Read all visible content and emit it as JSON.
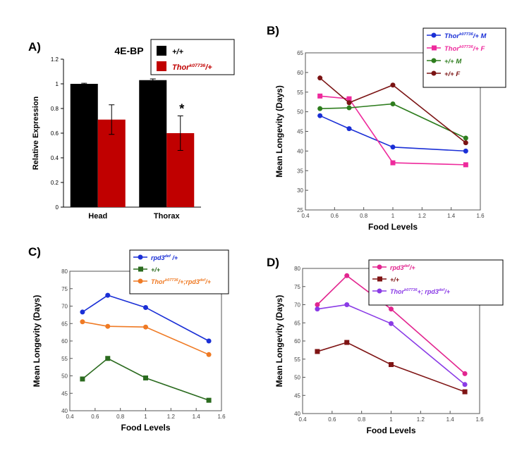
{
  "colors": {
    "black": "#000000",
    "red": "#c00000",
    "blue": "#1a2fd6",
    "pink": "#ee2a9c",
    "green": "#2e7d1e",
    "maroon": "#7b1414",
    "orange": "#ef7a24",
    "darkgreen": "#2b6b1f",
    "magenta": "#e2258f",
    "purple": "#8a3be6",
    "darkred": "#7f1414"
  },
  "chart_data": [
    {
      "id": "A",
      "panel_label": "A)",
      "type": "bar",
      "title": "4E-BP",
      "ylabel": "Relative Expression",
      "xlabel": "",
      "ylim": [
        0,
        1.2
      ],
      "yticks": [
        "0",
        "0.2",
        "0.4",
        "0.6",
        "0.8",
        "1",
        "1.2"
      ],
      "categories": [
        "Head",
        "Thorax"
      ],
      "series": [
        {
          "name": "+/+",
          "sup": "",
          "suffix": "",
          "values": [
            1.0,
            1.03
          ],
          "errors": [
            0.005,
            0.01
          ],
          "color": "#000000"
        },
        {
          "name": "Thor",
          "sup": "k07736",
          "suffix": "/+",
          "values": [
            0.71,
            0.6
          ],
          "errors": [
            0.12,
            0.14
          ],
          "color": "#c00000"
        }
      ],
      "annotations": [
        {
          "text": "*",
          "category": "Thorax",
          "series": 1
        }
      ],
      "legend": "top-right"
    },
    {
      "id": "B",
      "panel_label": "B)",
      "type": "line",
      "title": "",
      "xlabel": "Food Levels",
      "ylabel": "Mean Longevity (Days)",
      "xlim": [
        0.4,
        1.6
      ],
      "ylim": [
        25,
        65
      ],
      "xticks": [
        "0.4",
        "0.6",
        "0.8",
        "1",
        "1.2",
        "1.4",
        "1.6"
      ],
      "yticks": [
        "25",
        "30",
        "35",
        "40",
        "45",
        "50",
        "55",
        "60",
        "65"
      ],
      "x": [
        0.5,
        0.7,
        1,
        1.5
      ],
      "series": [
        {
          "name": "Thor",
          "sup": "k07736",
          "suffix": "/+ M",
          "values": [
            49,
            45.7,
            41,
            40
          ],
          "color": "#1a2fd6",
          "marker": "circle"
        },
        {
          "name": "Thor",
          "sup": "k07736",
          "suffix": "/+ F",
          "values": [
            54,
            53.3,
            37,
            36.5
          ],
          "color": "#ee2a9c",
          "marker": "square"
        },
        {
          "name": "+/+ ",
          "sup": "",
          "suffix": "M",
          "values": [
            50.8,
            51,
            52,
            43.3
          ],
          "color": "#2e7d1e",
          "marker": "circle"
        },
        {
          "name": "+/+ ",
          "sup": "",
          "suffix": "F",
          "values": [
            58.6,
            52.3,
            56.8,
            42.1
          ],
          "color": "#7b1414",
          "marker": "circle"
        }
      ],
      "legend": "top-right"
    },
    {
      "id": "C",
      "panel_label": "C)",
      "type": "line",
      "title": "",
      "xlabel": "Food Levels",
      "ylabel": "Mean Longevity (Days)",
      "xlim": [
        0.4,
        1.6
      ],
      "ylim": [
        40,
        80
      ],
      "xticks": [
        "0.4",
        "0.6",
        "0.8",
        "1",
        "1.2",
        "1.4",
        "1.6"
      ],
      "yticks": [
        "40",
        "45",
        "50",
        "55",
        "60",
        "65",
        "70",
        "75",
        "80"
      ],
      "x": [
        0.5,
        0.7,
        1,
        1.5
      ],
      "series": [
        {
          "name": "rpd3",
          "sup": "def",
          "suffix": " /+",
          "values": [
            68.3,
            73.1,
            69.6,
            60
          ],
          "color": "#1a2fd6",
          "marker": "circle"
        },
        {
          "name": "+/+",
          "sup": "",
          "suffix": "",
          "values": [
            49.1,
            55,
            49.4,
            43
          ],
          "color": "#2b6b1f",
          "marker": "square"
        },
        {
          "name": "Thor",
          "sup": "k07736",
          "suffix": "/+;rpd3",
          "sup2": "def",
          "suffix2": "/+",
          "values": [
            65.5,
            64.2,
            64,
            56.1
          ],
          "color": "#ef7a24",
          "marker": "circle"
        }
      ],
      "legend": "top-right"
    },
    {
      "id": "D",
      "panel_label": "D)",
      "type": "line",
      "title": "",
      "xlabel": "Food Levels",
      "ylabel": "Mean Longevity (Days)",
      "xlim": [
        0.4,
        1.6
      ],
      "ylim": [
        40,
        80
      ],
      "xticks": [
        "0.4",
        "0.6",
        "0.8",
        "1",
        "1.2",
        "1.4",
        "1.6"
      ],
      "yticks": [
        "40",
        "45",
        "50",
        "55",
        "60",
        "65",
        "70",
        "75",
        "80"
      ],
      "x": [
        0.5,
        0.7,
        1,
        1.5
      ],
      "series": [
        {
          "name": "rpd3",
          "sup": "def",
          "suffix": "/+",
          "values": [
            70,
            78,
            68.8,
            51
          ],
          "color": "#e2258f",
          "marker": "circle"
        },
        {
          "name": "+/+",
          "sup": "",
          "suffix": "",
          "values": [
            57.1,
            59.6,
            53.5,
            46
          ],
          "color": "#7f1414",
          "marker": "square"
        },
        {
          "name": "Thor",
          "sup": "k07736",
          "suffix": "+; rpd3",
          "sup2": "def",
          "suffix2": "/+",
          "values": [
            68.8,
            70,
            64.8,
            48
          ],
          "color": "#8a3be6",
          "marker": "circle"
        }
      ],
      "legend": "top-right"
    }
  ]
}
